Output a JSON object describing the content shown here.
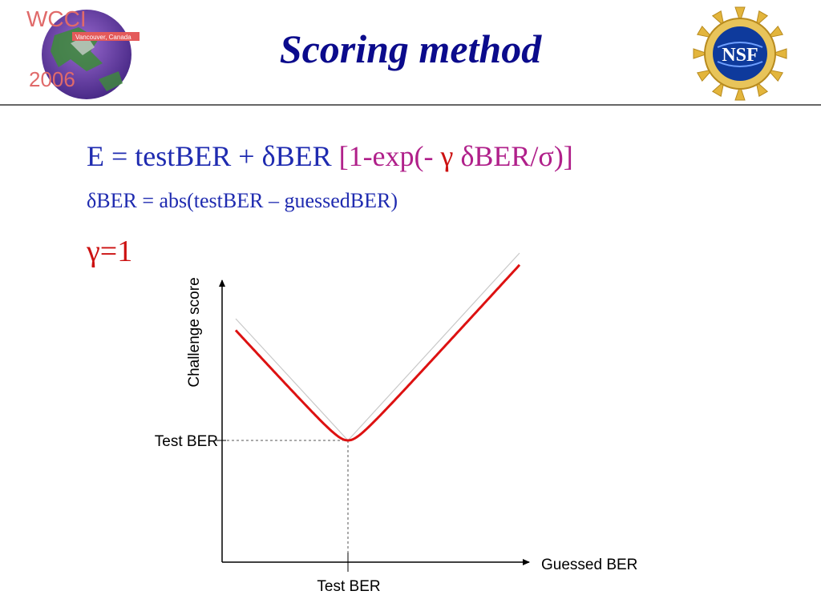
{
  "title": "Scoring method",
  "logos": {
    "left": {
      "top_text": "WCCI",
      "banner_text": "Vancouver, Canada",
      "bottom_text": "2006",
      "icon": "wcci-globe-logo"
    },
    "right": {
      "text": "NSF",
      "icon": "nsf-seal-logo"
    }
  },
  "equations": {
    "line1": {
      "part_main": "E = testBER + δBER ",
      "part_bracket_open": "[1-exp(- ",
      "part_gamma": "γ",
      "part_rest": " δBER/σ)]"
    },
    "line2": "δBER = abs(testBER – guessedBER)",
    "line3": "γ=1"
  },
  "diagram": {
    "ylabel": "Challenge score",
    "xlabel": "Guessed BER",
    "y_marker_label": "Test BER",
    "x_marker_label": "Test BER",
    "colors": {
      "curve": "#dd1111",
      "asymptote": "#c8c8c8",
      "axis": "#000000",
      "guide": "#555555"
    }
  }
}
